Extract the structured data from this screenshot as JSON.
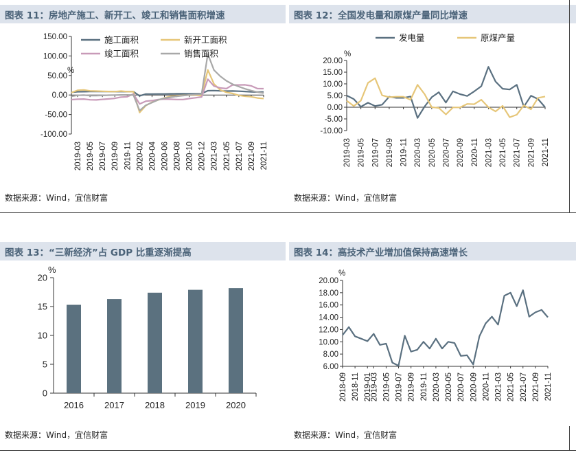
{
  "panels": [
    {
      "title": "图表 11：房地产施工、新开工、竣工和销售面积增速",
      "source": "数据来源：Wind，宜信财富"
    },
    {
      "title": "图表 12：全国发电量和原煤产量同比增速",
      "source": "数据来源：Wind，宜信财富"
    },
    {
      "title": "图表 13：“三新经济”占 GDP 比重逐渐提高",
      "source": "数据来源：Wind，宜信财富"
    },
    {
      "title": "图表 14：高技术产业增加值保持高速增长",
      "source": "数据来源：Wind，宜信财富"
    }
  ],
  "colors": {
    "header_bg": "#dde3ec",
    "title": "#4a6278",
    "slate": "#5a7080",
    "gold": "#e6c678",
    "mauve": "#c89ab8",
    "gray": "#a8a8a8",
    "bar": "#5b717f"
  },
  "chart_data": [
    {
      "type": "line",
      "unit": "%",
      "ylim": [
        -100,
        150
      ],
      "yticks": [
        "150.00",
        "100.00",
        "50.00",
        "0.00",
        "-50.00",
        "-100.00"
      ],
      "x": [
        "2019-02",
        "2019-03",
        "2019-04",
        "2019-05",
        "2019-06",
        "2019-07",
        "2019-08",
        "2019-09",
        "2019-10",
        "2019-11",
        "2019-12",
        "2020-02",
        "2020-03",
        "2020-04",
        "2020-05",
        "2020-06",
        "2020-07",
        "2020-08",
        "2020-09",
        "2020-10",
        "2020-11",
        "2020-12",
        "2021-02",
        "2021-03",
        "2021-04",
        "2021-05",
        "2021-06",
        "2021-07",
        "2021-08",
        "2021-09",
        "2021-10",
        "2021-11"
      ],
      "xtick_labels": [
        "2019-03",
        "2019-05",
        "2019-07",
        "2019-09",
        "2019-11",
        "2020-02",
        "2020-04",
        "2020-06",
        "2020-08",
        "2020-10",
        "2020-12",
        "2021-03",
        "2021-05",
        "2021-07",
        "2021-09",
        "2021-11"
      ],
      "legend": "top",
      "series": [
        {
          "name": "施工面积",
          "color": "#5a7080",
          "values": [
            6.8,
            8.2,
            8.5,
            8.8,
            8.8,
            9.0,
            8.8,
            8.7,
            9.0,
            8.7,
            8.7,
            -2.5,
            2.5,
            2.5,
            2.6,
            2.6,
            3.0,
            3.1,
            3.1,
            3.0,
            3.4,
            3.7,
            11.0,
            11.2,
            10.5,
            10.1,
            10.2,
            9.6,
            8.9,
            7.9,
            7.6,
            7.5
          ]
        },
        {
          "name": "新开工面积",
          "color": "#e6c678",
          "values": [
            6.0,
            11.9,
            13.1,
            10.5,
            10.1,
            9.5,
            8.9,
            8.6,
            10.0,
            8.6,
            8.5,
            -44.9,
            -27.2,
            -18.4,
            -12.8,
            -7.6,
            -3.6,
            -2.1,
            -1.1,
            -0.3,
            -0.4,
            -1.2,
            64.3,
            28.2,
            12.8,
            6.9,
            3.8,
            -0.9,
            -3.2,
            -4.5,
            -7.7,
            -9.1
          ]
        },
        {
          "name": "竣工面积",
          "color": "#c89ab8",
          "values": [
            -11.9,
            -10.8,
            -10.3,
            -12.4,
            -12.7,
            -11.3,
            -10.0,
            -8.6,
            -5.5,
            -4.5,
            2.6,
            -22.9,
            -15.8,
            -14.5,
            -11.6,
            -10.5,
            -11.0,
            -11.6,
            -11.6,
            -9.2,
            -7.3,
            -4.9,
            40.4,
            22.9,
            17.9,
            16.4,
            25.7,
            25.7,
            26.0,
            23.4,
            16.3,
            16.2
          ]
        },
        {
          "name": "销售面积",
          "color": "#a8a8a8",
          "values": [
            -3.6,
            -0.9,
            -0.3,
            -1.6,
            -1.8,
            -1.3,
            -0.6,
            -0.1,
            0.1,
            0.2,
            -0.1,
            -39.9,
            -26.3,
            -19.3,
            -12.3,
            -8.4,
            -5.8,
            -3.3,
            -1.8,
            0.0,
            1.3,
            2.6,
            104.9,
            63.8,
            48.1,
            36.3,
            27.7,
            21.5,
            15.9,
            11.3,
            7.3,
            4.8
          ]
        }
      ]
    },
    {
      "type": "line",
      "unit": "%",
      "ylim": [
        -10,
        20
      ],
      "yticks": [
        "20.00",
        "15.00",
        "10.00",
        "5.00",
        "0.00",
        "-5.00",
        "-10.00"
      ],
      "x": [
        "2019-03",
        "2019-04",
        "2019-05",
        "2019-06",
        "2019-07",
        "2019-08",
        "2019-09",
        "2019-10",
        "2019-11",
        "2019-12",
        "2020-03",
        "2020-04",
        "2020-05",
        "2020-06",
        "2020-07",
        "2020-08",
        "2020-09",
        "2020-10",
        "2020-11",
        "2020-12",
        "2021-03",
        "2021-04",
        "2021-05",
        "2021-06",
        "2021-07",
        "2021-08",
        "2021-09",
        "2021-10",
        "2021-11"
      ],
      "xtick_labels": [
        "2019-03",
        "2019-05",
        "2019-07",
        "2019-09",
        "2019-11",
        "2020-03",
        "2020-05",
        "2020-07",
        "2020-09",
        "2020-11",
        "2021-03",
        "2021-05",
        "2021-07",
        "2021-09",
        "2021-11"
      ],
      "legend": "top",
      "series": [
        {
          "name": "发电量",
          "color": "#5a7080",
          "values": [
            5.0,
            3.5,
            0.2,
            1.9,
            0.5,
            1.1,
            4.5,
            4.0,
            4.0,
            4.6,
            -4.6,
            0.3,
            4.3,
            6.4,
            2.0,
            6.8,
            5.6,
            4.8,
            6.8,
            9.0,
            17.3,
            11.0,
            7.9,
            7.6,
            9.6,
            0.2,
            4.9,
            3.5,
            0.0
          ]
        },
        {
          "name": "原煤产量",
          "color": "#e6c678",
          "values": [
            2.8,
            0.5,
            2.8,
            10.4,
            12.4,
            5.1,
            4.3,
            4.5,
            4.5,
            3.2,
            9.6,
            5.6,
            0.0,
            -0.3,
            -3.1,
            -0.1,
            -0.1,
            1.4,
            1.3,
            3.2,
            0.0,
            -1.8,
            0.6,
            -4.3,
            -3.2,
            0.8,
            -0.9,
            4.0,
            4.6
          ]
        }
      ]
    },
    {
      "type": "bar",
      "unit": "%",
      "ylim": [
        0,
        20
      ],
      "yticks": [
        "20",
        "15",
        "10",
        "5",
        "0"
      ],
      "categories": [
        "2016",
        "2017",
        "2018",
        "2019",
        "2020"
      ],
      "values": [
        15.3,
        16.3,
        17.4,
        17.9,
        18.2
      ],
      "color": "#5b717f"
    },
    {
      "type": "line",
      "unit": "%",
      "ylim": [
        6,
        20
      ],
      "yticks": [
        "20.00",
        "18.00",
        "16.00",
        "14.00",
        "12.00",
        "10.00",
        "8.00",
        "6.00"
      ],
      "x": [
        "2018-09",
        "2018-10",
        "2018-11",
        "2018-12",
        "2019-01",
        "2019-03",
        "2019-04",
        "2019-05",
        "2019-06",
        "2019-07",
        "2019-08",
        "2019-09",
        "2019-10",
        "2019-11",
        "2019-12",
        "2020-03",
        "2020-04",
        "2020-05",
        "2020-06",
        "2020-07",
        "2020-08",
        "2020-09",
        "2020-10",
        "2020-11",
        "2020-12",
        "2021-03",
        "2021-04",
        "2021-05",
        "2021-06",
        "2021-07",
        "2021-08",
        "2021-09",
        "2021-10",
        "2021-11"
      ],
      "xtick_labels": [
        "2018-09",
        "2018-11",
        "2019-01",
        "2019-03",
        "2019-05",
        "2019-07",
        "2019-09",
        "2019-11",
        "2020-01",
        "2020-03",
        "2020-05",
        "2020-07",
        "2020-09",
        "2020-11",
        "2021-01",
        "2021-03",
        "2021-05",
        "2021-07",
        "2021-09",
        "2021-11"
      ],
      "series": [
        {
          "name": "高技术产业增加值",
          "color": "#5a7080",
          "values": [
            11.1,
            12.4,
            10.9,
            10.5,
            10.1,
            11.3,
            9.5,
            9.7,
            6.6,
            6.1,
            11.0,
            8.4,
            8.7,
            10.0,
            8.9,
            10.5,
            8.9,
            10.0,
            9.8,
            7.7,
            7.8,
            6.3,
            10.9,
            13.0,
            14.1,
            12.8,
            17.5,
            18.0,
            15.8,
            18.4,
            14.1,
            14.8,
            15.2,
            14.0
          ]
        }
      ]
    }
  ]
}
